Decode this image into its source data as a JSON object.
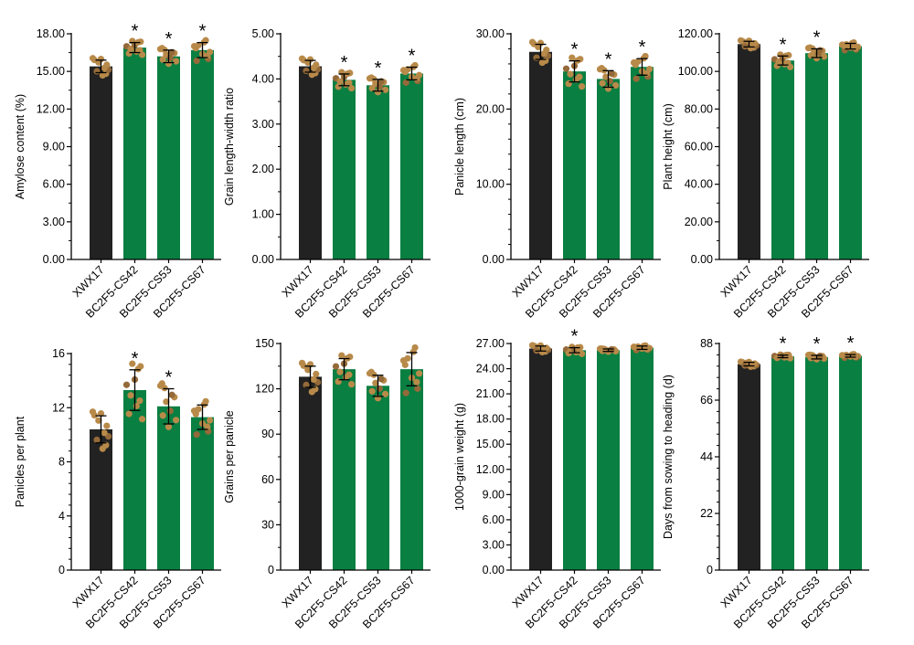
{
  "colors": {
    "control": "#222222",
    "line": "#0a7f42",
    "dots": "#b88a4a",
    "dots_alt": "#946a3a",
    "axis": "#000000"
  },
  "chart_data": [
    {
      "type": "bar",
      "ylabel": "Amylose content (%)",
      "ylim": [
        0,
        18
      ],
      "yticks": [
        "0.00",
        "3.00",
        "6.00",
        "9.00",
        "12.00",
        "15.00",
        "18.00"
      ],
      "categories": [
        "XWX17",
        "BC2F5-CS42",
        "BC2F5-CS53",
        "BC2F5-CS67"
      ],
      "values": [
        15.4,
        16.9,
        16.2,
        16.7
      ],
      "errors": [
        0.5,
        0.4,
        0.5,
        0.6
      ],
      "significance": [
        "",
        "*",
        "*",
        "*"
      ]
    },
    {
      "type": "bar",
      "ylabel": "Grain length-width ratio",
      "ylim": [
        0,
        5
      ],
      "yticks": [
        "0.00",
        "1.00",
        "2.00",
        "3.00",
        "4.00",
        "5.00"
      ],
      "categories": [
        "XWX17",
        "BC2F5-CS42",
        "BC2F5-CS53",
        "BC2F5-CS67"
      ],
      "values": [
        4.28,
        3.98,
        3.86,
        4.12
      ],
      "errors": [
        0.13,
        0.13,
        0.13,
        0.14
      ],
      "significance": [
        "",
        "*",
        "*",
        "*"
      ]
    },
    {
      "type": "bar",
      "ylabel": "Panicle length (cm)",
      "ylim": [
        0,
        30
      ],
      "yticks": [
        "0.00",
        "10.00",
        "20.00",
        "30.00"
      ],
      "categories": [
        "XWX17",
        "BC2F5-CS42",
        "BC2F5-CS53",
        "BC2F5-CS67"
      ],
      "values": [
        27.6,
        25.0,
        24.0,
        25.6
      ],
      "errors": [
        1.0,
        1.4,
        1.1,
        1.1
      ],
      "significance": [
        "",
        "*",
        "*",
        "*"
      ]
    },
    {
      "type": "bar",
      "ylabel": "Plant height (cm)",
      "ylim": [
        0,
        120
      ],
      "yticks": [
        "0.00",
        "20.00",
        "40.00",
        "60.00",
        "80.00",
        "100.00",
        "120.00"
      ],
      "categories": [
        "XWX17",
        "BC2F5-CS42",
        "BC2F5-CS53",
        "BC2F5-CS67"
      ],
      "values": [
        114.5,
        105.8,
        109.7,
        113.4
      ],
      "errors": [
        1.5,
        2.4,
        2.3,
        1.5
      ],
      "significance": [
        "",
        "*",
        "*",
        ""
      ]
    },
    {
      "type": "bar",
      "ylabel": "Panicles per plant",
      "ylim": [
        0,
        16
      ],
      "yticks": [
        "0",
        "4",
        "8",
        "12",
        "16"
      ],
      "categories": [
        "XWX17",
        "BC2F5-CS42",
        "BC2F5-CS53",
        "BC2F5-CS67"
      ],
      "values": [
        10.4,
        13.3,
        12.1,
        11.3
      ],
      "errors": [
        1.0,
        1.5,
        1.3,
        0.9
      ],
      "significance": [
        "",
        "*",
        "*",
        ""
      ]
    },
    {
      "type": "bar",
      "ylabel": "Grains per panicle",
      "ylim": [
        0,
        150
      ],
      "yticks": [
        "0",
        "30",
        "60",
        "90",
        "120",
        "150"
      ],
      "categories": [
        "XWX17",
        "BC2F5-CS42",
        "BC2F5-CS53",
        "BC2F5-CS67"
      ],
      "values": [
        128,
        133,
        122,
        133
      ],
      "errors": [
        7,
        7,
        7,
        11
      ],
      "significance": [
        "",
        "",
        "",
        ""
      ]
    },
    {
      "type": "bar",
      "ylabel": "1000-grain weight (g)",
      "ylim": [
        0,
        27
      ],
      "yticks": [
        "0.00",
        "3.00",
        "6.00",
        "9.00",
        "12.00",
        "15.00",
        "18.00",
        "21.00",
        "24.00",
        "27.00"
      ],
      "categories": [
        "XWX17",
        "BC2F5-CS42",
        "BC2F5-CS53",
        "BC2F5-CS67"
      ],
      "values": [
        26.4,
        26.2,
        26.2,
        26.5
      ],
      "errors": [
        0.3,
        0.3,
        0.15,
        0.2
      ],
      "significance": [
        "",
        "*",
        "",
        ""
      ]
    },
    {
      "type": "bar",
      "ylabel": "Days from sowing to heading (d)",
      "ylim": [
        0,
        88
      ],
      "yticks": [
        "0",
        "22",
        "44",
        "66",
        "88"
      ],
      "categories": [
        "XWX17",
        "BC2F5-CS42",
        "BC2F5-CS53",
        "BC2F5-CS67"
      ],
      "values": [
        80.0,
        83.0,
        82.7,
        83.2
      ],
      "errors": [
        0.7,
        0.5,
        0.7,
        0.5
      ],
      "significance": [
        "",
        "*",
        "*",
        "*"
      ]
    }
  ]
}
